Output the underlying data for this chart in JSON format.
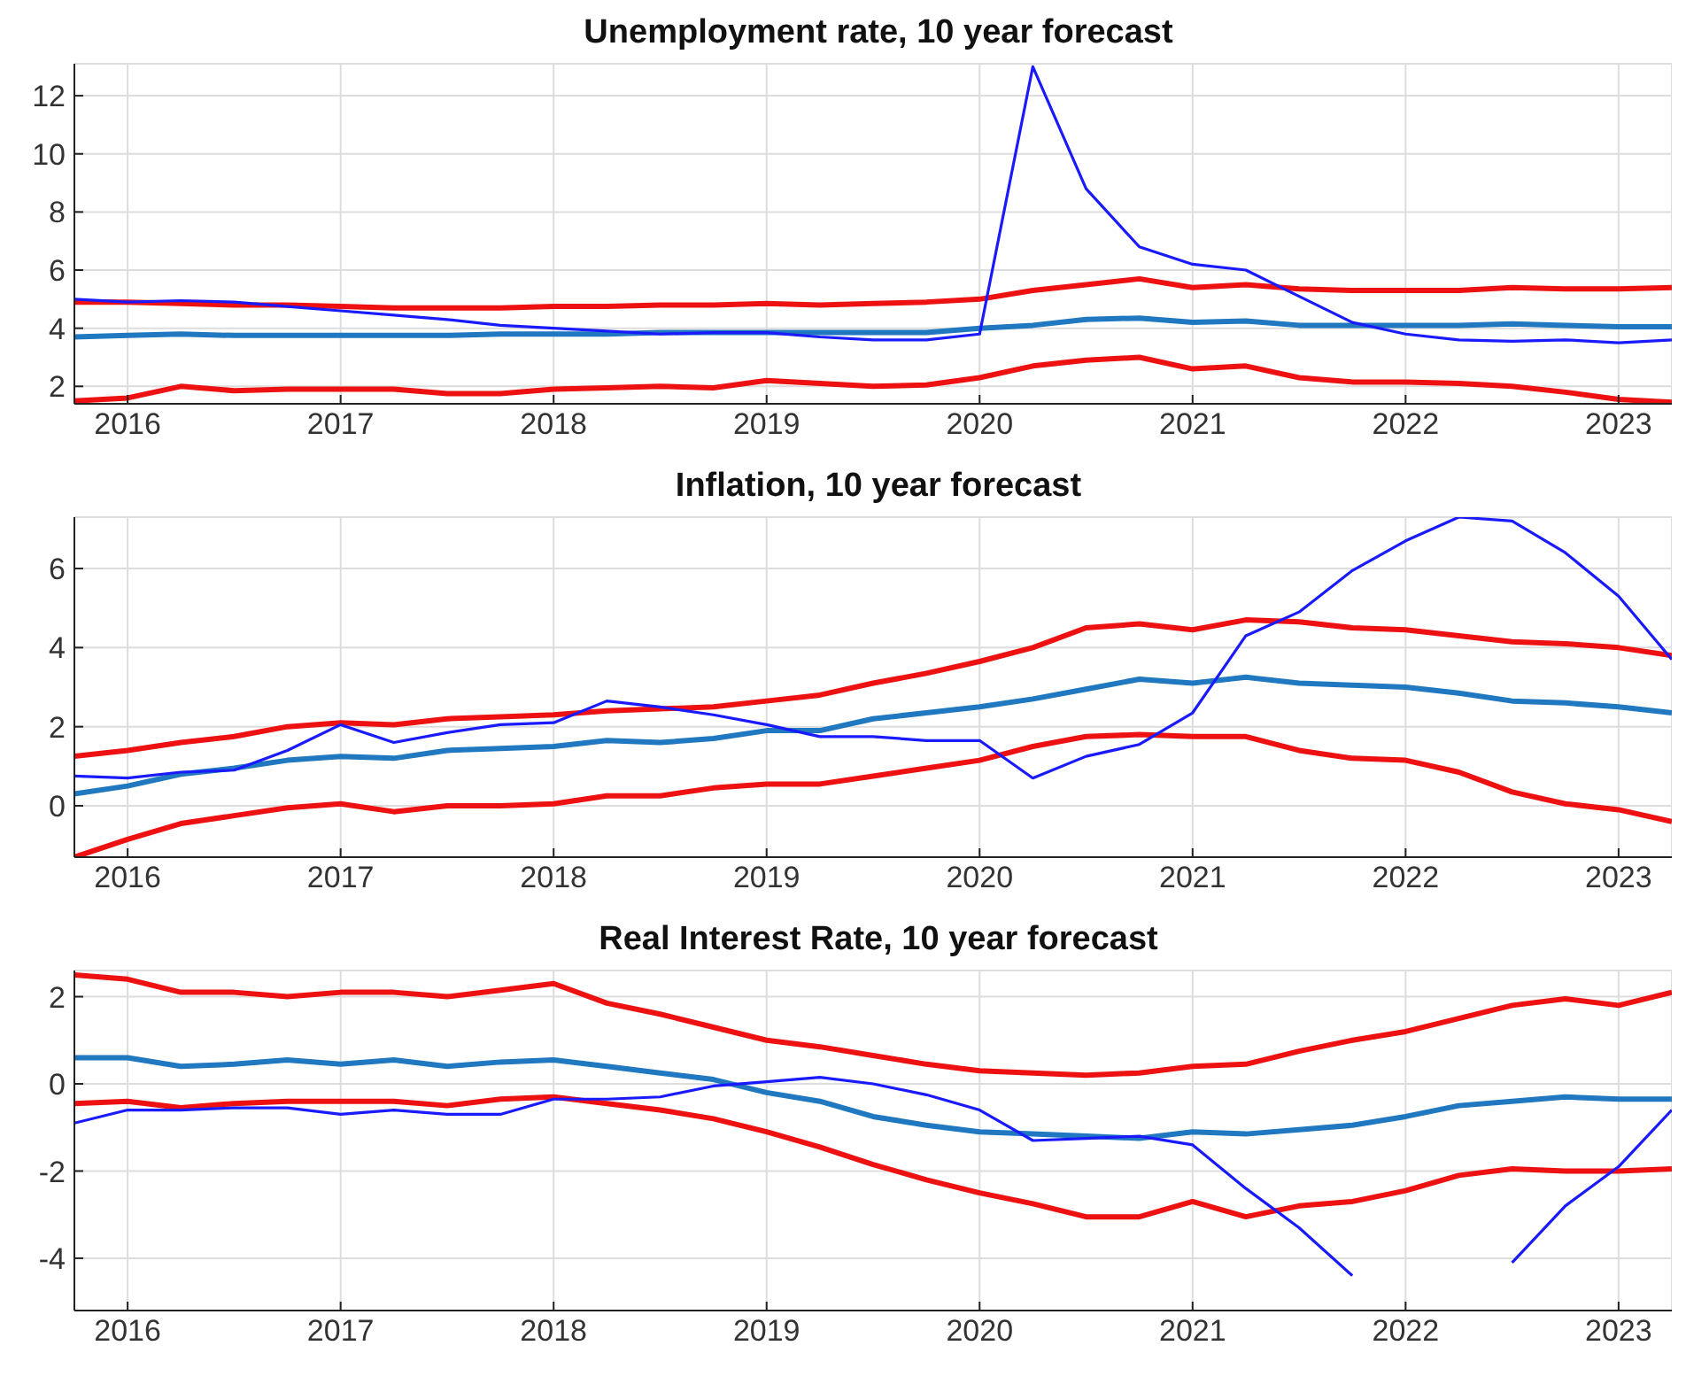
{
  "chart_data": [
    {
      "type": "line",
      "title": "Unemployment rate, 10 year forecast",
      "x": [
        2015.75,
        2016,
        2016.25,
        2016.5,
        2016.75,
        2017,
        2017.25,
        2017.5,
        2017.75,
        2018,
        2018.25,
        2018.5,
        2018.75,
        2019,
        2019.25,
        2019.5,
        2019.75,
        2020,
        2020.25,
        2020.5,
        2020.75,
        2021,
        2021.25,
        2021.5,
        2021.75,
        2022,
        2022.25,
        2022.5,
        2022.75,
        2023,
        2023.25
      ],
      "xlim": [
        2015.75,
        2023.25
      ],
      "xticks": [
        2016,
        2017,
        2018,
        2019,
        2020,
        2021,
        2022,
        2023
      ],
      "ylim": [
        1.4,
        13.1
      ],
      "yticks": [
        2,
        4,
        6,
        8,
        10,
        12
      ],
      "grid": true,
      "legend": false,
      "marker": "none",
      "line_style": "solid",
      "series": [
        {
          "color": "#ee1111",
          "values": [
            4.9,
            4.9,
            4.85,
            4.8,
            4.8,
            4.75,
            4.7,
            4.7,
            4.7,
            4.75,
            4.75,
            4.8,
            4.8,
            4.85,
            4.8,
            4.85,
            4.9,
            5.0,
            5.3,
            5.5,
            5.7,
            5.4,
            5.5,
            5.35,
            5.3,
            5.3,
            5.3,
            5.4,
            5.35,
            5.35,
            5.4
          ]
        },
        {
          "color": "#ee1111",
          "values": [
            1.5,
            1.6,
            2.0,
            1.85,
            1.9,
            1.9,
            1.9,
            1.75,
            1.75,
            1.9,
            1.95,
            2.0,
            1.95,
            2.2,
            2.1,
            2.0,
            2.05,
            2.3,
            2.7,
            2.9,
            3.0,
            2.6,
            2.7,
            2.3,
            2.15,
            2.15,
            2.1,
            2.0,
            1.8,
            1.55,
            1.45
          ]
        },
        {
          "color": "#1f78c0",
          "values": [
            3.7,
            3.75,
            3.8,
            3.75,
            3.75,
            3.75,
            3.75,
            3.75,
            3.8,
            3.8,
            3.8,
            3.85,
            3.85,
            3.85,
            3.85,
            3.85,
            3.85,
            4.0,
            4.1,
            4.3,
            4.35,
            4.2,
            4.25,
            4.1,
            4.1,
            4.1,
            4.1,
            4.15,
            4.1,
            4.05,
            4.05
          ]
        },
        {
          "color": "#1a1aff",
          "values": [
            5.0,
            4.9,
            4.95,
            4.9,
            4.75,
            4.6,
            4.45,
            4.3,
            4.1,
            4.0,
            3.9,
            3.8,
            3.85,
            3.85,
            3.7,
            3.6,
            3.6,
            3.8,
            13.0,
            8.8,
            6.8,
            6.2,
            6.0,
            5.1,
            4.2,
            3.8,
            3.6,
            3.55,
            3.6,
            3.5,
            3.6
          ]
        }
      ]
    },
    {
      "type": "line",
      "title": "Inflation, 10 year forecast",
      "x": [
        2015.75,
        2016,
        2016.25,
        2016.5,
        2016.75,
        2017,
        2017.25,
        2017.5,
        2017.75,
        2018,
        2018.25,
        2018.5,
        2018.75,
        2019,
        2019.25,
        2019.5,
        2019.75,
        2020,
        2020.25,
        2020.5,
        2020.75,
        2021,
        2021.25,
        2021.5,
        2021.75,
        2022,
        2022.25,
        2022.5,
        2022.75,
        2023,
        2023.25
      ],
      "xlim": [
        2015.75,
        2023.25
      ],
      "xticks": [
        2016,
        2017,
        2018,
        2019,
        2020,
        2021,
        2022,
        2023
      ],
      "ylim": [
        -1.3,
        7.3
      ],
      "yticks": [
        0,
        2,
        4,
        6
      ],
      "grid": true,
      "legend": false,
      "marker": "none",
      "line_style": "solid",
      "series": [
        {
          "color": "#ee1111",
          "values": [
            1.25,
            1.4,
            1.6,
            1.75,
            2.0,
            2.1,
            2.05,
            2.2,
            2.25,
            2.3,
            2.4,
            2.45,
            2.5,
            2.65,
            2.8,
            3.1,
            3.35,
            3.65,
            4.0,
            4.5,
            4.6,
            4.45,
            4.7,
            4.65,
            4.5,
            4.45,
            4.3,
            4.15,
            4.1,
            4.0,
            3.8
          ]
        },
        {
          "color": "#ee1111",
          "values": [
            -1.3,
            -0.85,
            -0.45,
            -0.25,
            -0.05,
            0.05,
            -0.15,
            0.0,
            0.0,
            0.05,
            0.25,
            0.25,
            0.45,
            0.55,
            0.55,
            0.75,
            0.95,
            1.15,
            1.5,
            1.75,
            1.8,
            1.75,
            1.75,
            1.4,
            1.2,
            1.15,
            0.85,
            0.35,
            0.05,
            -0.1,
            -0.4
          ]
        },
        {
          "color": "#1f78c0",
          "values": [
            0.3,
            0.5,
            0.8,
            0.95,
            1.15,
            1.25,
            1.2,
            1.4,
            1.45,
            1.5,
            1.65,
            1.6,
            1.7,
            1.9,
            1.9,
            2.2,
            2.35,
            2.5,
            2.7,
            2.95,
            3.2,
            3.1,
            3.25,
            3.1,
            3.05,
            3.0,
            2.85,
            2.65,
            2.6,
            2.5,
            2.35
          ]
        },
        {
          "color": "#1a1aff",
          "values": [
            0.75,
            0.7,
            0.85,
            0.9,
            1.4,
            2.05,
            1.6,
            1.85,
            2.05,
            2.1,
            2.65,
            2.5,
            2.3,
            2.05,
            1.75,
            1.75,
            1.65,
            1.65,
            0.7,
            1.25,
            1.55,
            2.35,
            4.3,
            4.9,
            5.95,
            6.7,
            7.3,
            7.2,
            6.4,
            5.3,
            3.7
          ]
        }
      ]
    },
    {
      "type": "line",
      "title": "Real Interest Rate, 10 year forecast",
      "x": [
        2015.75,
        2016,
        2016.25,
        2016.5,
        2016.75,
        2017,
        2017.25,
        2017.5,
        2017.75,
        2018,
        2018.25,
        2018.5,
        2018.75,
        2019,
        2019.25,
        2019.5,
        2019.75,
        2020,
        2020.25,
        2020.5,
        2020.75,
        2021,
        2021.25,
        2021.5,
        2021.75,
        2022,
        2022.25,
        2022.5,
        2022.75,
        2023,
        2023.25
      ],
      "xlim": [
        2015.75,
        2023.25
      ],
      "xticks": [
        2016,
        2017,
        2018,
        2019,
        2020,
        2021,
        2022,
        2023
      ],
      "ylim": [
        -5.2,
        2.6
      ],
      "yticks": [
        -4,
        -2,
        0,
        2
      ],
      "grid": true,
      "legend": false,
      "marker": "none",
      "line_style": "solid",
      "series": [
        {
          "color": "#ee1111",
          "values": [
            2.5,
            2.4,
            2.1,
            2.1,
            2.0,
            2.1,
            2.1,
            2.0,
            2.15,
            2.3,
            1.85,
            1.6,
            1.3,
            1.0,
            0.85,
            0.65,
            0.45,
            0.3,
            0.25,
            0.2,
            0.25,
            0.4,
            0.45,
            0.75,
            1.0,
            1.2,
            1.5,
            1.8,
            1.95,
            1.8,
            2.1
          ]
        },
        {
          "color": "#ee1111",
          "values": [
            -0.45,
            -0.4,
            -0.55,
            -0.45,
            -0.4,
            -0.4,
            -0.4,
            -0.5,
            -0.35,
            -0.3,
            -0.45,
            -0.6,
            -0.8,
            -1.1,
            -1.45,
            -1.85,
            -2.2,
            -2.5,
            -2.75,
            -3.05,
            -3.05,
            -2.7,
            -3.05,
            -2.8,
            -2.7,
            -2.45,
            -2.1,
            -1.95,
            -2.0,
            -2.0,
            -1.95
          ]
        },
        {
          "color": "#1f78c0",
          "values": [
            0.6,
            0.6,
            0.4,
            0.45,
            0.55,
            0.45,
            0.55,
            0.4,
            0.5,
            0.55,
            0.4,
            0.25,
            0.1,
            -0.2,
            -0.4,
            -0.75,
            -0.95,
            -1.1,
            -1.15,
            -1.2,
            -1.25,
            -1.1,
            -1.15,
            -1.05,
            -0.95,
            -0.75,
            -0.5,
            -0.4,
            -0.3,
            -0.35,
            -0.35
          ]
        },
        {
          "color": "#1a1aff",
          "values": [
            -0.9,
            -0.6,
            -0.6,
            -0.55,
            -0.55,
            -0.7,
            -0.6,
            -0.7,
            -0.7,
            -0.35,
            -0.35,
            -0.3,
            -0.05,
            0.05,
            0.15,
            0.0,
            -0.25,
            -0.6,
            -1.3,
            -1.25,
            -1.2,
            -1.4,
            -2.4,
            -3.3,
            -4.4,
            null,
            null,
            -4.1,
            -2.8,
            -1.9,
            -0.6
          ]
        }
      ]
    }
  ]
}
